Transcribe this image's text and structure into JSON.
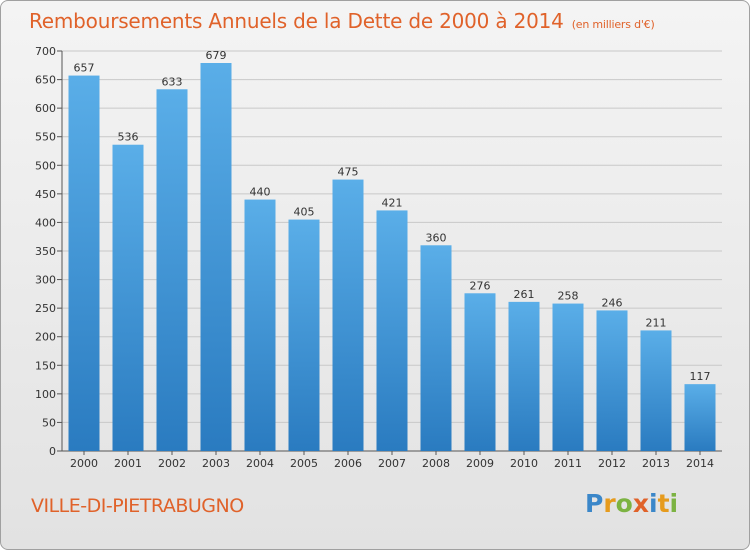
{
  "header": {
    "title": "Remboursements Annuels de la Dette de 2000 à 2014",
    "unit": "(en milliers d'€)"
  },
  "footer": {
    "location": "VILLE-DI-PIETRABUGNO",
    "logo_letters": [
      "P",
      "r",
      "o",
      "x",
      "i",
      "t",
      "i"
    ]
  },
  "colors": {
    "bar_top": "#5aaee8",
    "bar_bottom": "#2a7bc0",
    "title": "#e0622a",
    "grid": "#c8c8c8"
  },
  "chart_data": {
    "type": "bar",
    "title": "Remboursements Annuels de la Dette de 2000 à 2014",
    "subtitle": "(en milliers d'€)",
    "xlabel": "",
    "ylabel": "",
    "categories": [
      "2000",
      "2001",
      "2002",
      "2003",
      "2004",
      "2005",
      "2006",
      "2007",
      "2008",
      "2009",
      "2010",
      "2011",
      "2012",
      "2013",
      "2014"
    ],
    "values": [
      657,
      536,
      633,
      679,
      440,
      405,
      475,
      421,
      360,
      276,
      261,
      258,
      246,
      211,
      117
    ],
    "ylim": [
      0,
      700
    ],
    "yticks": [
      0,
      50,
      100,
      150,
      200,
      250,
      300,
      350,
      400,
      450,
      500,
      550,
      600,
      650,
      700
    ],
    "grid": true
  }
}
